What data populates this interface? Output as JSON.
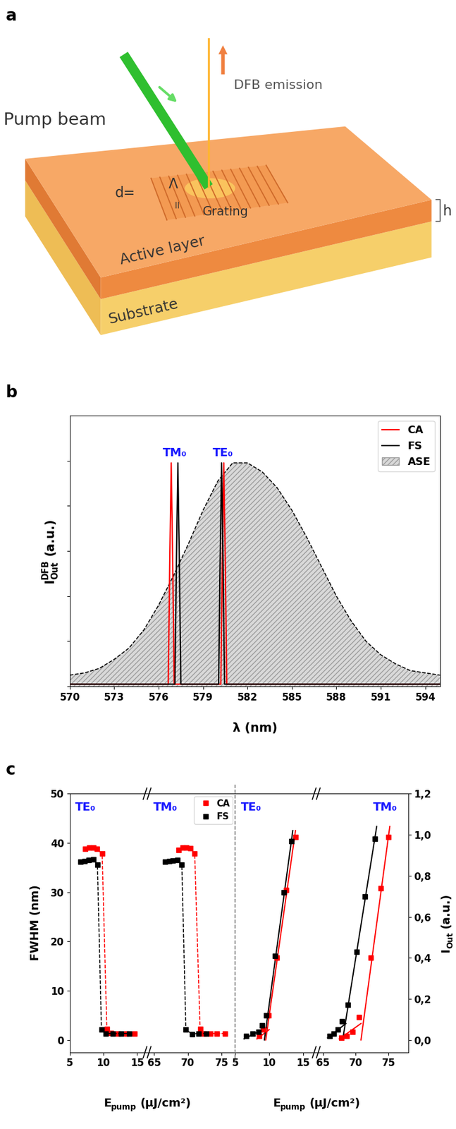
{
  "panel_labels": [
    "a",
    "b",
    "c"
  ],
  "diagram": {
    "pump_beam": "Pump beam",
    "emission": "DFB emission",
    "period": [
      "d=",
      "Λ",
      "="
    ],
    "grating": "Grating",
    "thickness": "h",
    "layer": "Active layer",
    "substrate": "Substrate"
  },
  "chart_data": [
    {
      "type": "line",
      "xlabel": "λ (nm)",
      "ylabel": [
        {
          "text": "I"
        },
        {
          "sub": "Out",
          "sup": "DFB"
        },
        {
          "text": "(a.u.)"
        }
      ],
      "xlim": [
        570,
        595
      ],
      "xticks": [
        570,
        573,
        576,
        579,
        582,
        585,
        588,
        591,
        594
      ],
      "ylim": [
        0,
        1.2
      ],
      "yticks": [
        0,
        0.2,
        0.4,
        0.6,
        0.8,
        1.0
      ],
      "tick_labels": "x",
      "legend": "upper right",
      "peak_labels": [
        "TM₀",
        "TE₀"
      ],
      "series": [
        {
          "name": "CA",
          "color": "#ff0000",
          "line_style": "solid",
          "x": [
            570,
            576.65,
            576.75,
            576.85,
            576.95,
            577.05,
            580.2,
            580.3,
            580.4,
            580.5,
            580.6,
            595
          ],
          "values": [
            0.01,
            0.01,
            0.55,
            0.99,
            0.55,
            0.01,
            0.01,
            0.55,
            0.99,
            0.55,
            0.01,
            0.01
          ]
        },
        {
          "name": "FS",
          "color": "#000000",
          "line_style": "solid",
          "x": [
            570,
            577.1,
            577.2,
            577.3,
            577.4,
            577.5,
            580.05,
            580.15,
            580.25,
            580.35,
            580.45,
            595
          ],
          "values": [
            0.01,
            0.01,
            0.55,
            0.99,
            0.55,
            0.01,
            0.01,
            0.55,
            0.99,
            0.55,
            0.01,
            0.01
          ]
        },
        {
          "name": "ASE",
          "type": "area",
          "color": "#d9d9d9",
          "line_style": "dashed",
          "x": [
            570,
            571,
            572,
            573,
            574,
            575,
            576,
            577,
            578,
            579,
            580,
            581,
            582,
            583,
            584,
            585,
            586,
            587,
            588,
            589,
            590,
            591,
            592,
            593,
            594,
            595
          ],
          "values": [
            0.05,
            0.06,
            0.08,
            0.12,
            0.17,
            0.25,
            0.36,
            0.49,
            0.63,
            0.78,
            0.91,
            0.99,
            0.99,
            0.95,
            0.88,
            0.78,
            0.66,
            0.53,
            0.4,
            0.29,
            0.2,
            0.14,
            0.1,
            0.07,
            0.06,
            0.05
          ]
        }
      ]
    },
    {
      "type": "scatter",
      "ylabel": "FWHM (nm)",
      "xlabel": [
        {
          "text": "E"
        },
        {
          "sub": "pump"
        },
        {
          "text": "(μJ/cm²)"
        }
      ],
      "xlim": [
        5,
        16.5
      ],
      "xticks": [
        5,
        10,
        15
      ],
      "ylim": [
        -2.5,
        50
      ],
      "yticks": [
        0,
        10,
        20,
        30,
        40,
        50
      ],
      "annotation": "TE₀",
      "series": [
        {
          "name": "CA",
          "color": "#ff0000",
          "marker": "square",
          "line_style": "dashed",
          "x": [
            7.3,
            7.9,
            8.5,
            9.0,
            9.8,
            10.5,
            11.1,
            12.2,
            13.4,
            14.6
          ],
          "values": [
            38.8,
            39,
            39,
            38.8,
            37.8,
            2.2,
            1.4,
            1.3,
            1.3,
            1.3
          ]
        },
        {
          "name": "FS",
          "color": "#000000",
          "marker": "square",
          "line_style": "dashed",
          "x": [
            6.6,
            7.2,
            7.8,
            8.5,
            9.1,
            9.7,
            10.3,
            11.4,
            12.6,
            13.8
          ],
          "values": [
            36.2,
            36.3,
            36.5,
            36.6,
            35.6,
            2.1,
            1.3,
            1.3,
            1.3,
            1.3
          ]
        }
      ]
    },
    {
      "type": "scatter",
      "xlim": [
        64,
        77
      ],
      "xticks": [
        65,
        70,
        75
      ],
      "ylim": [
        -2.5,
        50
      ],
      "tick_labels": "x",
      "annotation": "TM₀",
      "legend": "upper right",
      "series": [
        {
          "name": "CA",
          "color": "#ff0000",
          "marker": "square",
          "line_style": "dashed",
          "x": [
            68.6,
            69.2,
            69.8,
            70.4,
            71.0,
            71.8,
            72.4,
            73.3,
            74.3,
            75.5
          ],
          "values": [
            38.6,
            39,
            39,
            38.9,
            37.8,
            2.2,
            1.3,
            1.3,
            1.3,
            1.3
          ]
        },
        {
          "name": "FS",
          "color": "#000000",
          "marker": "square",
          "line_style": "dashed",
          "x": [
            66.6,
            67.2,
            67.8,
            68.5,
            69.1,
            69.7,
            70.6,
            71.6,
            72.7
          ],
          "values": [
            36.2,
            36.3,
            36.4,
            36.5,
            35.6,
            2.1,
            1.2,
            1.3,
            1.3
          ]
        }
      ]
    },
    {
      "type": "scatter",
      "xlabel": [
        {
          "text": "E"
        },
        {
          "sub": "pump"
        },
        {
          "text": "(μJ/cm²)"
        }
      ],
      "xlim": [
        5,
        17
      ],
      "xticks": [
        5,
        10,
        15
      ],
      "ylim": [
        -0.06,
        1.2
      ],
      "tick_labels": "x",
      "annotation": "TE₀",
      "series": [
        {
          "name": "CA",
          "color": "#ff0000",
          "marker": "square",
          "line_style": "none",
          "x": [
            8.5,
            9.1,
            9.9,
            11.1,
            12.5,
            13.9
          ],
          "values": [
            0.02,
            0.05,
            0.12,
            0.4,
            0.73,
            0.99
          ],
          "fits": [
            {
              "x": [
                9.5,
                13.9
              ],
              "values": [
                0.0,
                1.02
              ]
            },
            {
              "x": [
                8.2,
                10.0
              ],
              "values": [
                0.005,
                0.05
              ]
            }
          ]
        },
        {
          "name": "FS",
          "color": "#000000",
          "marker": "square",
          "line_style": "none",
          "x": [
            6.6,
            7.6,
            8.4,
            9.0,
            9.6,
            10.9,
            12.2,
            13.3
          ],
          "values": [
            0.02,
            0.03,
            0.04,
            0.07,
            0.12,
            0.41,
            0.72,
            0.97
          ],
          "fits": [
            {
              "x": [
                9.3,
                13.5
              ],
              "values": [
                0.0,
                1.02
              ]
            },
            {
              "x": [
                6.3,
                9.6
              ],
              "values": [
                0.005,
                0.06
              ]
            }
          ]
        }
      ]
    },
    {
      "type": "scatter",
      "ylabel": [
        {
          "text": "I"
        },
        {
          "sub": "Out"
        },
        {
          "text": "(a.u.)"
        }
      ],
      "xlim": [
        64,
        78
      ],
      "xticks": [
        65,
        70,
        75
      ],
      "ylim": [
        -0.06,
        1.2
      ],
      "yticks": [
        {
          "value": 0.0,
          "label": "0,0"
        },
        {
          "value": 0.2,
          "label": "0,2"
        },
        {
          "value": 0.4,
          "label": "0,4"
        },
        {
          "value": 0.6,
          "label": "0,6"
        },
        {
          "value": 0.8,
          "label": "0,8"
        },
        {
          "value": 1.0,
          "label": "1,0"
        },
        {
          "value": 1.2,
          "label": "1,2"
        }
      ],
      "annotation": "TM₀",
      "series": [
        {
          "name": "CA",
          "color": "#ff0000",
          "marker": "square",
          "line_style": "none",
          "x": [
            67.8,
            68.6,
            69.5,
            70.5,
            72.3,
            73.8,
            75.0
          ],
          "values": [
            0.01,
            0.02,
            0.04,
            0.11,
            0.4,
            0.74,
            0.99
          ],
          "fits": [
            {
              "x": [
                70.8,
                75.2
              ],
              "values": [
                0.0,
                1.04
              ]
            },
            {
              "x": [
                67.5,
                70.8
              ],
              "values": [
                0.005,
                0.08
              ]
            }
          ]
        },
        {
          "name": "FS",
          "color": "#000000",
          "marker": "square",
          "line_style": "none",
          "x": [
            66.0,
            66.6,
            67.3,
            67.9,
            68.8,
            70.1,
            71.4,
            72.9
          ],
          "values": [
            0.02,
            0.03,
            0.05,
            0.09,
            0.17,
            0.43,
            0.7,
            0.98
          ],
          "fits": [
            {
              "x": [
                68.0,
                73.2
              ],
              "values": [
                0.0,
                1.04
              ]
            },
            {
              "x": [
                65.7,
                68.5
              ],
              "values": [
                0.01,
                0.08
              ]
            }
          ]
        }
      ]
    }
  ]
}
